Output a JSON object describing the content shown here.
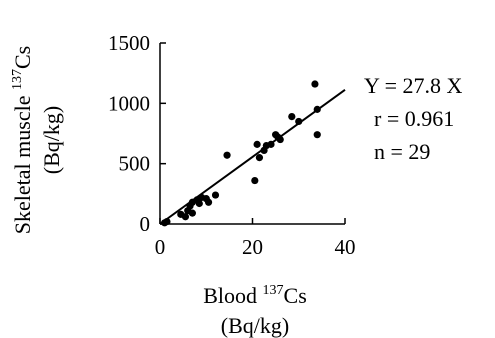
{
  "chart_data": {
    "type": "scatter",
    "xlabel": "Blood ",
    "xlabel_sup": "137",
    "xlabel_tail": "Cs",
    "xlabel_unit": "(Bq/kg)",
    "ylabel": "Skeletal muscle ",
    "ylabel_sup": "137",
    "ylabel_tail": "Cs",
    "ylabel_unit": "(Bq/kg)",
    "xlim": [
      0,
      40
    ],
    "ylim": [
      0,
      1500
    ],
    "xticks": [
      "0",
      "20",
      "40"
    ],
    "xtick_values": [
      0,
      20,
      40
    ],
    "yticks": [
      "0",
      "500",
      "1000",
      "1500"
    ],
    "ytick_values": [
      0,
      500,
      1000,
      1500
    ],
    "grid": false,
    "series": [
      {
        "points": [
          {
            "x": 1.0,
            "y": 10
          },
          {
            "x": 1.5,
            "y": 20
          },
          {
            "x": 4.5,
            "y": 80
          },
          {
            "x": 6.0,
            "y": 110
          },
          {
            "x": 6.5,
            "y": 150
          },
          {
            "x": 7.0,
            "y": 180
          },
          {
            "x": 7.0,
            "y": 90
          },
          {
            "x": 8.0,
            "y": 200
          },
          {
            "x": 8.5,
            "y": 170
          },
          {
            "x": 9.0,
            "y": 220
          },
          {
            "x": 10.0,
            "y": 210
          },
          {
            "x": 10.5,
            "y": 180
          },
          {
            "x": 14.5,
            "y": 570
          },
          {
            "x": 20.5,
            "y": 360
          },
          {
            "x": 21.0,
            "y": 660
          },
          {
            "x": 21.5,
            "y": 550
          },
          {
            "x": 22.5,
            "y": 610
          },
          {
            "x": 23.0,
            "y": 650
          },
          {
            "x": 24.0,
            "y": 660
          },
          {
            "x": 25.0,
            "y": 740
          },
          {
            "x": 25.5,
            "y": 720
          },
          {
            "x": 26.0,
            "y": 700
          },
          {
            "x": 28.5,
            "y": 890
          },
          {
            "x": 30.0,
            "y": 850
          },
          {
            "x": 33.5,
            "y": 1160
          },
          {
            "x": 34.0,
            "y": 950
          },
          {
            "x": 34.0,
            "y": 740
          },
          {
            "x": 12.0,
            "y": 240
          },
          {
            "x": 5.5,
            "y": 60
          }
        ]
      }
    ],
    "fit_line": {
      "slope": 27.8,
      "x_range": [
        0,
        40
      ]
    },
    "annotations": [
      "Y = 27.8 X",
      "r  = 0.961",
      "n  = 29"
    ]
  }
}
